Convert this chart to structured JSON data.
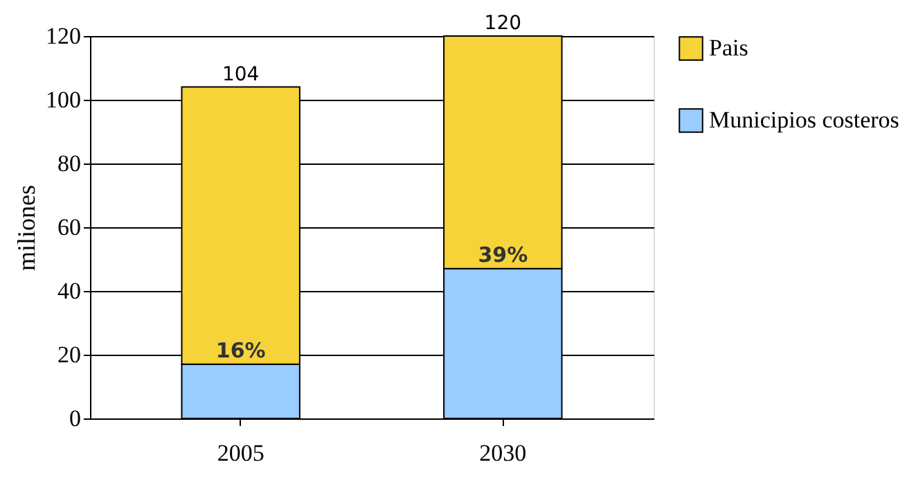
{
  "chart_data": {
    "type": "bar",
    "stacked": true,
    "ylabel": "miliones",
    "categories": [
      "2005",
      "2030"
    ],
    "series": [
      {
        "name": "Municipios costeros",
        "color": "#99ccff",
        "values": [
          17,
          47
        ]
      },
      {
        "name": "Pais",
        "color": "#f7d33a",
        "values": [
          87,
          73
        ]
      }
    ],
    "annotations": [
      {
        "text": "16%",
        "x": "2005",
        "y": 17
      },
      {
        "text": "39%",
        "x": "2030",
        "y": 47
      }
    ],
    "totals": [
      "104",
      "120"
    ],
    "ylim": [
      0,
      120
    ],
    "yticks": [
      0,
      20,
      40,
      60,
      80,
      100,
      120
    ],
    "grid": "y",
    "legend": "right"
  }
}
